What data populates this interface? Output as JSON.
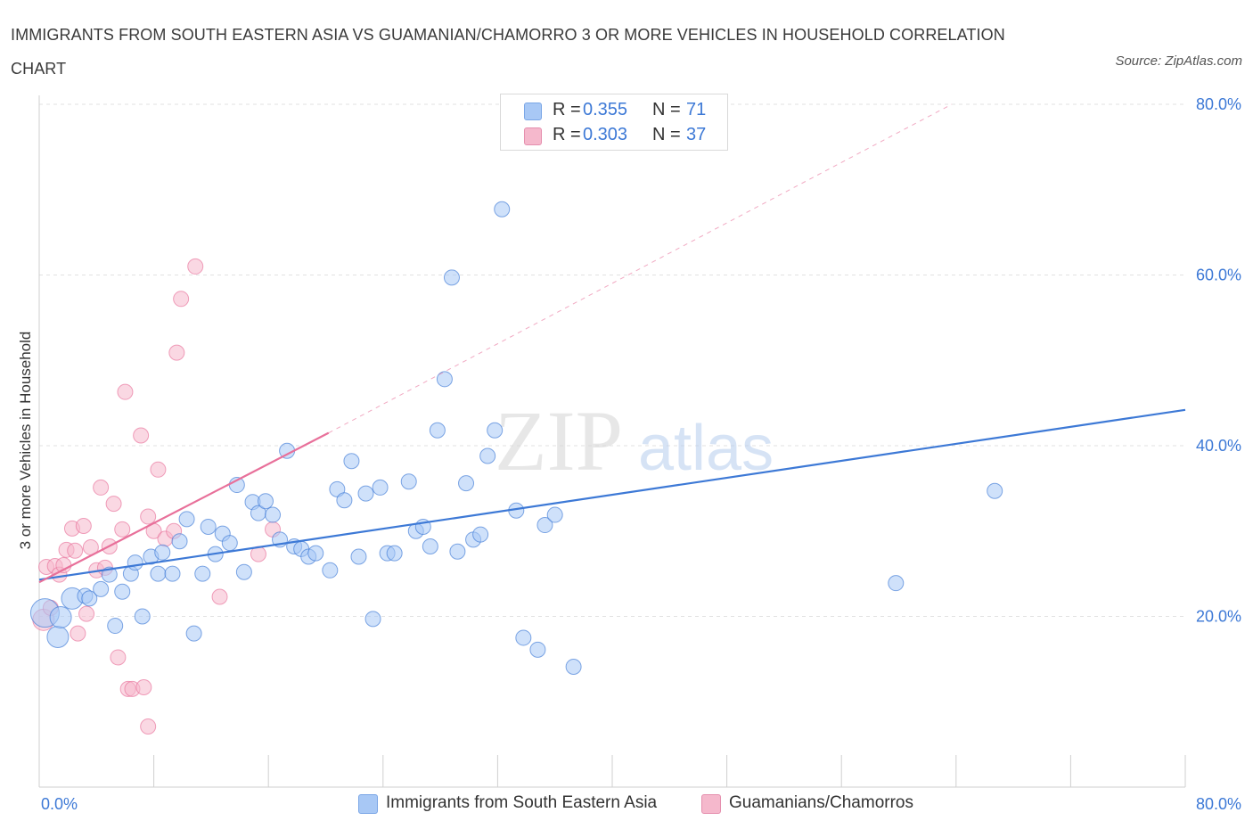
{
  "title": "IMMIGRANTS FROM SOUTH EASTERN ASIA VS GUAMANIAN/CHAMORRO 3 OR MORE VEHICLES IN HOUSEHOLD CORRELATION CHART",
  "source": "Source: ZipAtlas.com",
  "watermark": {
    "zip": "ZIP",
    "atlas": "atlas"
  },
  "legend": {
    "rows": [
      {
        "r_label": "R =",
        "r_value": "0.355",
        "n_label": "N =",
        "n_value": "71",
        "color": "#a8c8f5"
      },
      {
        "r_label": "R =",
        "r_value": "0.303",
        "n_label": "N =",
        "n_value": "37",
        "color": "#f5b8cc"
      }
    ]
  },
  "chart_data": {
    "type": "scatter",
    "ylabel": "3 or more Vehicles in Household",
    "xlabel": "",
    "xlim": [
      0,
      80
    ],
    "ylim": [
      0,
      80
    ],
    "x_tick_labels": [
      "0.0%",
      "80.0%"
    ],
    "y_tick_labels": [
      "20.0%",
      "40.0%",
      "60.0%",
      "80.0%"
    ],
    "y_ticks": [
      20,
      40,
      60,
      80
    ],
    "grid": true,
    "legend_position": "top-center",
    "series": [
      {
        "name": "Immigrants from South Eastern Asia",
        "color": "#3d79d6",
        "fill": "#a8c8f5",
        "trend": {
          "x": [
            0,
            80
          ],
          "y": [
            24.3,
            44.2
          ]
        },
        "points": [
          [
            0.4,
            20.4,
            3
          ],
          [
            1.3,
            17.6,
            2
          ],
          [
            1.5,
            19.9,
            2
          ],
          [
            2.3,
            22.1,
            2
          ],
          [
            3.2,
            22.4,
            1
          ],
          [
            3.5,
            22.1,
            1
          ],
          [
            4.3,
            23.2,
            1
          ],
          [
            4.9,
            24.9,
            1
          ],
          [
            5.3,
            18.9,
            1
          ],
          [
            5.8,
            22.9,
            1
          ],
          [
            6.4,
            25.0,
            1
          ],
          [
            6.7,
            26.3,
            1
          ],
          [
            7.2,
            20.0,
            1
          ],
          [
            7.8,
            27.0,
            1
          ],
          [
            8.3,
            25.0,
            1
          ],
          [
            8.6,
            27.5,
            1
          ],
          [
            9.3,
            25.0,
            1
          ],
          [
            9.8,
            28.8,
            1
          ],
          [
            10.3,
            31.4,
            1
          ],
          [
            10.8,
            18.0,
            1
          ],
          [
            11.4,
            25.0,
            1
          ],
          [
            11.8,
            30.5,
            1
          ],
          [
            12.3,
            27.3,
            1
          ],
          [
            12.8,
            29.7,
            1
          ],
          [
            13.3,
            28.6,
            1
          ],
          [
            13.8,
            35.4,
            1
          ],
          [
            14.3,
            25.2,
            1
          ],
          [
            14.9,
            33.4,
            1
          ],
          [
            15.3,
            32.1,
            1
          ],
          [
            15.8,
            33.5,
            1
          ],
          [
            16.3,
            31.9,
            1
          ],
          [
            16.8,
            29.0,
            1
          ],
          [
            17.3,
            39.4,
            1
          ],
          [
            17.8,
            28.2,
            1
          ],
          [
            18.3,
            27.9,
            1
          ],
          [
            18.8,
            27.0,
            1
          ],
          [
            19.3,
            27.4,
            1
          ],
          [
            20.3,
            25.4,
            1
          ],
          [
            20.8,
            34.9,
            1
          ],
          [
            21.3,
            33.6,
            1
          ],
          [
            21.8,
            38.2,
            1
          ],
          [
            22.3,
            27.0,
            1
          ],
          [
            22.8,
            34.4,
            1
          ],
          [
            23.3,
            19.7,
            1
          ],
          [
            23.8,
            35.1,
            1
          ],
          [
            24.3,
            27.4,
            1
          ],
          [
            24.8,
            27.4,
            1
          ],
          [
            25.8,
            35.8,
            1
          ],
          [
            26.3,
            30.0,
            1
          ],
          [
            26.8,
            30.5,
            1
          ],
          [
            27.3,
            28.2,
            1
          ],
          [
            27.8,
            41.8,
            1
          ],
          [
            28.3,
            47.8,
            1
          ],
          [
            28.8,
            59.7,
            1
          ],
          [
            29.2,
            27.6,
            1
          ],
          [
            29.8,
            35.6,
            1
          ],
          [
            30.3,
            29.0,
            1
          ],
          [
            30.8,
            29.6,
            1
          ],
          [
            31.3,
            38.8,
            1
          ],
          [
            31.8,
            41.8,
            1
          ],
          [
            32.3,
            67.7,
            1
          ],
          [
            33.3,
            32.4,
            1
          ],
          [
            33.8,
            17.5,
            1
          ],
          [
            34.8,
            16.1,
            1
          ],
          [
            35.3,
            30.7,
            1
          ],
          [
            36.0,
            31.9,
            1
          ],
          [
            37.3,
            14.1,
            1
          ],
          [
            59.8,
            23.9,
            1
          ],
          [
            66.7,
            34.7,
            1
          ]
        ]
      },
      {
        "name": "Guamanians/Chamorros",
        "color": "#e8709a",
        "fill": "#f5b8cc",
        "trend": {
          "x": [
            0,
            20.2
          ],
          "y": [
            24.0,
            41.5
          ]
        },
        "trend_dashed": {
          "x": [
            20.2,
            63.7
          ],
          "y": [
            41.5,
            80
          ]
        },
        "points": [
          [
            0.3,
            19.6,
            2
          ],
          [
            0.5,
            25.8,
            1
          ],
          [
            0.8,
            21.0,
            1
          ],
          [
            1.1,
            25.9,
            1
          ],
          [
            1.4,
            24.9,
            1
          ],
          [
            1.7,
            26.0,
            1
          ],
          [
            1.9,
            27.8,
            1
          ],
          [
            2.3,
            30.3,
            1
          ],
          [
            2.5,
            27.7,
            1
          ],
          [
            2.7,
            18.0,
            1
          ],
          [
            3.1,
            30.6,
            1
          ],
          [
            3.3,
            20.3,
            1
          ],
          [
            3.6,
            28.1,
            1
          ],
          [
            4.0,
            25.4,
            1
          ],
          [
            4.3,
            35.1,
            1
          ],
          [
            4.6,
            25.7,
            1
          ],
          [
            4.9,
            28.2,
            1
          ],
          [
            5.2,
            33.2,
            1
          ],
          [
            5.5,
            15.2,
            1
          ],
          [
            5.8,
            30.2,
            1
          ],
          [
            6.0,
            46.3,
            1
          ],
          [
            6.2,
            11.5,
            1
          ],
          [
            6.5,
            11.5,
            1
          ],
          [
            7.1,
            41.2,
            1
          ],
          [
            7.3,
            11.7,
            1
          ],
          [
            7.6,
            7.1,
            1
          ],
          [
            7.6,
            31.7,
            1
          ],
          [
            8.0,
            30.0,
            1
          ],
          [
            8.3,
            37.2,
            1
          ],
          [
            8.8,
            29.1,
            1
          ],
          [
            9.6,
            50.9,
            1
          ],
          [
            9.4,
            30.0,
            1
          ],
          [
            9.9,
            57.2,
            1
          ],
          [
            10.9,
            61.0,
            1
          ],
          [
            12.6,
            22.3,
            1
          ],
          [
            15.3,
            27.3,
            1
          ],
          [
            16.3,
            30.2,
            1
          ]
        ]
      }
    ]
  }
}
